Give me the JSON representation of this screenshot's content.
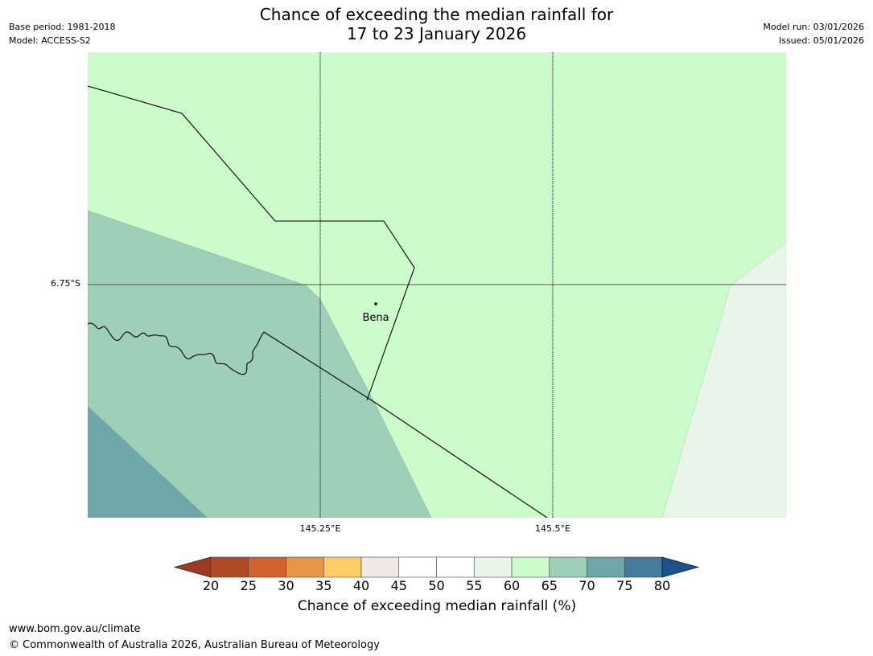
{
  "title": {
    "line1": "Chance of exceeding the median rainfall for",
    "line2": "17 to 23 January 2026"
  },
  "meta": {
    "base_period": "Base period: 1981-2018",
    "model": "Model: ACCESS-S2",
    "model_run": "Model run: 03/01/2026",
    "issued": "Issued: 05/01/2026"
  },
  "map": {
    "latitude_labels": [
      "6.75°S"
    ],
    "longitude_labels": [
      "145.25°E",
      "145.5°E"
    ],
    "town": "Bena",
    "region_colors": {
      "60-65": "#ccfccc",
      "65-70": "#9ecfb8",
      "70-75": "#6fa6a8",
      "55-60": "#eaf5e9"
    }
  },
  "colorbar": {
    "ticks": [
      "20",
      "25",
      "30",
      "35",
      "40",
      "45",
      "50",
      "55",
      "60",
      "65",
      "70",
      "75",
      "80"
    ],
    "colors": [
      "#b14a25",
      "#d2652f",
      "#e79647",
      "#ffcc66",
      "#eee9e5",
      "#ffffff",
      "#ffffff",
      "#eaf5e9",
      "#ccfccc",
      "#9ecfb8",
      "#6fa6a8",
      "#437c9c"
    ],
    "under_color": "#9a3b22",
    "over_color": "#1b528b",
    "label": "Chance of exceeding median rainfall (%)"
  },
  "footer": {
    "website": "www.bom.gov.au/climate",
    "copyright": "© Commonwealth of Australia 2026, Australian Bureau of Meteorology"
  }
}
